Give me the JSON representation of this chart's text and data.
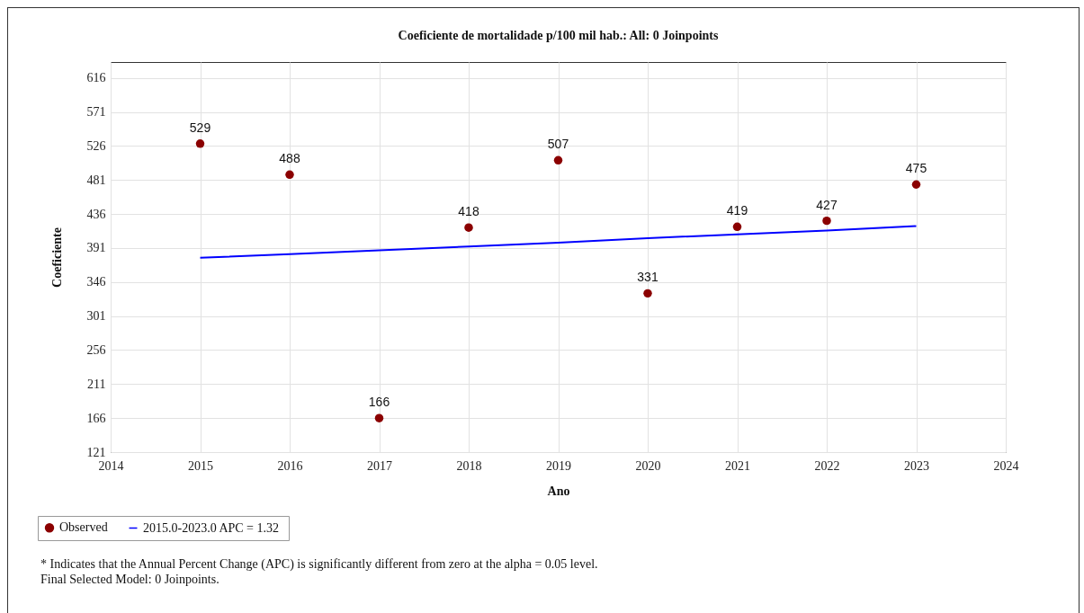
{
  "chart_data": {
    "type": "scatter",
    "title": "Coeficiente de mortalidade p/100 mil hab.: All: 0 Joinpoints",
    "xlabel": "Ano",
    "ylabel": "Coeficiente",
    "x": [
      2015,
      2016,
      2017,
      2018,
      2019,
      2020,
      2021,
      2022,
      2023
    ],
    "series": [
      {
        "name": "Observed",
        "type": "scatter",
        "marker": "circle",
        "color": "#8b0000",
        "values": [
          529,
          488,
          166,
          418,
          507,
          331,
          419,
          427,
          475
        ],
        "value_labels": [
          "529",
          "488",
          "166",
          "418",
          "507",
          "331",
          "419",
          "427",
          "475"
        ]
      },
      {
        "name": "2015.0-2023.0 APC  = 1.32",
        "type": "line",
        "line_style": "solid",
        "color": "#0000ff",
        "values": [
          378,
          383,
          388,
          393,
          398,
          404,
          409,
          414,
          420
        ]
      }
    ],
    "xlim": [
      2014,
      2024
    ],
    "xticks": [
      2014,
      2015,
      2016,
      2017,
      2018,
      2019,
      2020,
      2021,
      2022,
      2023,
      2024
    ],
    "ylim": [
      121,
      637
    ],
    "yticks": [
      121,
      166,
      211,
      256,
      301,
      346,
      391,
      436,
      481,
      526,
      571,
      616
    ],
    "grid": true,
    "legend": "bottom left",
    "annotations": [
      "* Indicates that the Annual Percent Change (APC) is significantly different from zero at the alpha = 0.05 level.",
      "Final Selected Model: 0 Joinpoints."
    ]
  }
}
